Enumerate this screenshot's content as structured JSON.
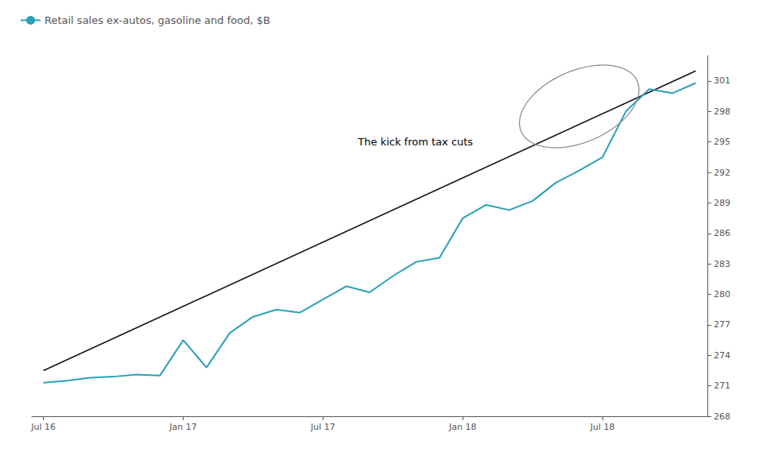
{
  "chart_data": {
    "type": "line",
    "x": [
      0,
      1,
      2,
      3,
      4,
      5,
      6,
      7,
      8,
      9,
      10,
      11,
      12,
      13,
      14,
      15,
      16,
      17,
      18,
      19,
      20,
      21,
      22,
      23,
      24,
      25,
      26,
      27,
      28
    ],
    "series": [
      {
        "name": "Retail sales ex-autos, gasoline and food, $B",
        "color": "#2aa0b8",
        "values": [
          271.3,
          271.5,
          271.8,
          271.9,
          272.1,
          272.0,
          275.5,
          272.8,
          276.2,
          277.8,
          278.5,
          278.2,
          279.5,
          280.8,
          280.2,
          281.8,
          283.2,
          283.6,
          287.5,
          288.8,
          288.3,
          289.2,
          291.0,
          292.2,
          293.5,
          298.0,
          300.2,
          299.8,
          300.8
        ]
      }
    ],
    "trend_line": {
      "x": [
        0,
        28
      ],
      "values": [
        272.5,
        302.0
      ],
      "color": "#111111"
    },
    "ellipse": {
      "center_x": 23.0,
      "center_y": 298.5,
      "width": 4.5,
      "height": 8.5,
      "angle": -20,
      "color": "#888888"
    },
    "annotations": [
      {
        "text": "The kick from tax cuts",
        "x": 13.5,
        "y": 294.5
      }
    ],
    "xlim": [
      -0.5,
      28.5
    ],
    "xticks": [
      {
        "value": 0,
        "label": "Jul 16"
      },
      {
        "value": 6,
        "label": "Jan 17"
      },
      {
        "value": 12,
        "label": "Jul 17"
      },
      {
        "value": 18,
        "label": "Jan 18"
      },
      {
        "value": 24,
        "label": "Jul 18"
      }
    ],
    "ylim": [
      268,
      303.5
    ],
    "yticks": [
      268,
      271,
      274,
      277,
      280,
      283,
      286,
      289,
      292,
      295,
      298,
      301
    ],
    "grid": false,
    "legend": "upper left"
  }
}
